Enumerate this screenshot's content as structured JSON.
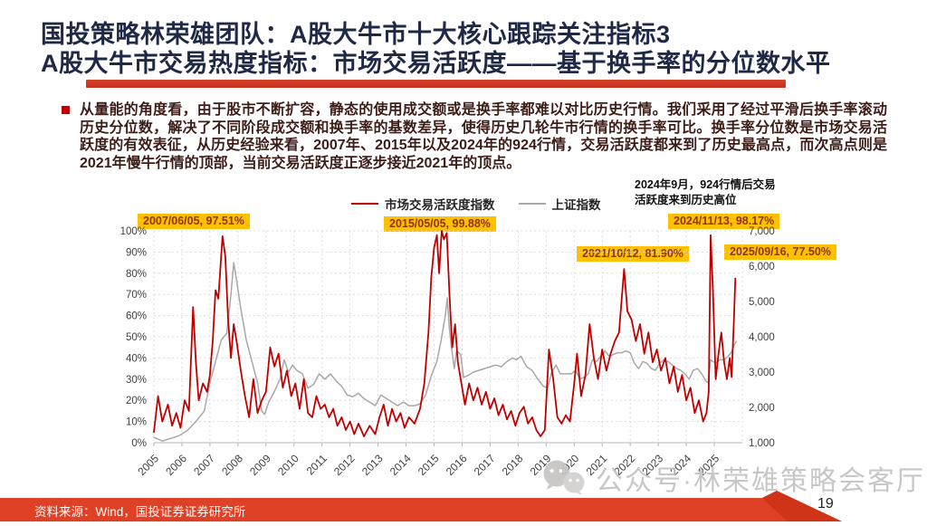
{
  "slide": {
    "title_line1": "国投策略林荣雄团队：A股大牛市十大核心跟踪关注指标3",
    "title_line2": "A股大牛市交易热度指标：市场交易活跃度——基于换手率的分位数水平",
    "body": "从量能的角度看，由于股市不断扩容，静态的使用成交额或是换手率都难以对比历史行情。我们采用了经过平滑后换手率滚动历史分位数，解决了不同阶段成交额和换手率的基数差异，使得历史几轮牛市行情的换手率可比。换手率分位数是市场交易活跃度的有效表征，从历史经验来看，2007年、2015年以及2024年的924行情，交易活跃度都来到了历史最高点，而次高点则是2021年慢牛行情的顶部，当前交易活跃度正逐步接近2021年的顶点。",
    "footer_source": "资料来源：Wind，国投证券证券研究所",
    "page_number": "19",
    "watermark": "公众号·林荣雄策略会客厅"
  },
  "chart_data": {
    "type": "line",
    "legend": [
      "市场交易活跃度指数",
      "上证指数"
    ],
    "legend_position": "top",
    "grid": true,
    "note": "2024年9月，924行情后交易\n活跃度来到历史高位",
    "x_ticks": [
      "2005",
      "2006",
      "2007",
      "2008",
      "2009",
      "2010",
      "2011",
      "2012",
      "2013",
      "2014",
      "2015",
      "2016",
      "2017",
      "2018",
      "2019",
      "2020",
      "2021",
      "2022",
      "2023",
      "2024",
      "2025"
    ],
    "xlim": [
      2005,
      2026
    ],
    "y_left_ticks": [
      "0%",
      "10%",
      "20%",
      "30%",
      "40%",
      "50%",
      "60%",
      "70%",
      "80%",
      "90%",
      "100%"
    ],
    "ylim_left": [
      0,
      100
    ],
    "y_right_ticks": [
      "1,000",
      "2,000",
      "3,000",
      "4,000",
      "5,000",
      "6,000",
      "7,000"
    ],
    "ylim_right": [
      1000,
      7000
    ],
    "annotations": [
      {
        "id": "peak-2007",
        "label": "2007/06/05, 97.51%"
      },
      {
        "id": "peak-2015",
        "label": "2015/05/05, 99.88%"
      },
      {
        "id": "peak-2021",
        "label": "2021/10/12, 81.90%"
      },
      {
        "id": "peak-2024",
        "label": "2024/11/13, 98.17%"
      },
      {
        "id": "latest-2025",
        "label": "2025/09/16, 77.50%"
      }
    ],
    "series": [
      {
        "name": "市场交易活跃度指数",
        "color": "#c00000",
        "axis": "left",
        "points": [
          [
            2005.0,
            5
          ],
          [
            2005.15,
            22
          ],
          [
            2005.3,
            10
          ],
          [
            2005.5,
            18
          ],
          [
            2005.65,
            8
          ],
          [
            2005.8,
            14
          ],
          [
            2005.95,
            7
          ],
          [
            2006.1,
            20
          ],
          [
            2006.25,
            15
          ],
          [
            2006.4,
            64
          ],
          [
            2006.5,
            38
          ],
          [
            2006.6,
            20
          ],
          [
            2006.75,
            28
          ],
          [
            2006.9,
            24
          ],
          [
            2007.0,
            32
          ],
          [
            2007.1,
            48
          ],
          [
            2007.2,
            72
          ],
          [
            2007.3,
            68
          ],
          [
            2007.45,
            97.5
          ],
          [
            2007.55,
            88
          ],
          [
            2007.65,
            58
          ],
          [
            2007.75,
            40
          ],
          [
            2007.85,
            56
          ],
          [
            2007.95,
            48
          ],
          [
            2008.1,
            34
          ],
          [
            2008.25,
            22
          ],
          [
            2008.4,
            12
          ],
          [
            2008.55,
            30
          ],
          [
            2008.7,
            14
          ],
          [
            2008.85,
            20
          ],
          [
            2009.0,
            24
          ],
          [
            2009.15,
            45
          ],
          [
            2009.3,
            36
          ],
          [
            2009.45,
            42
          ],
          [
            2009.6,
            26
          ],
          [
            2009.75,
            34
          ],
          [
            2009.9,
            22
          ],
          [
            2010.05,
            28
          ],
          [
            2010.2,
            16
          ],
          [
            2010.35,
            30
          ],
          [
            2010.5,
            14
          ],
          [
            2010.65,
            12
          ],
          [
            2010.8,
            22
          ],
          [
            2010.95,
            16
          ],
          [
            2011.1,
            18
          ],
          [
            2011.25,
            12
          ],
          [
            2011.4,
            16
          ],
          [
            2011.55,
            8
          ],
          [
            2011.7,
            12
          ],
          [
            2011.85,
            6
          ],
          [
            2012.0,
            10
          ],
          [
            2012.15,
            4
          ],
          [
            2012.3,
            9
          ],
          [
            2012.5,
            3
          ],
          [
            2012.7,
            8
          ],
          [
            2012.9,
            4
          ],
          [
            2013.05,
            12
          ],
          [
            2013.2,
            18
          ],
          [
            2013.35,
            8
          ],
          [
            2013.5,
            16
          ],
          [
            2013.65,
            10
          ],
          [
            2013.8,
            14
          ],
          [
            2013.95,
            7
          ],
          [
            2014.1,
            12
          ],
          [
            2014.3,
            9
          ],
          [
            2014.5,
            16
          ],
          [
            2014.65,
            28
          ],
          [
            2014.8,
            52
          ],
          [
            2014.9,
            78
          ],
          [
            2015.0,
            92
          ],
          [
            2015.1,
            98
          ],
          [
            2015.18,
            80
          ],
          [
            2015.27,
            100
          ],
          [
            2015.35,
            96
          ],
          [
            2015.45,
            99
          ],
          [
            2015.55,
            70
          ],
          [
            2015.65,
            45
          ],
          [
            2015.75,
            56
          ],
          [
            2015.85,
            38
          ],
          [
            2015.95,
            30
          ],
          [
            2016.1,
            18
          ],
          [
            2016.25,
            28
          ],
          [
            2016.4,
            20
          ],
          [
            2016.55,
            26
          ],
          [
            2016.7,
            18
          ],
          [
            2016.85,
            24
          ],
          [
            2017.0,
            16
          ],
          [
            2017.15,
            21
          ],
          [
            2017.3,
            13
          ],
          [
            2017.45,
            18
          ],
          [
            2017.6,
            11
          ],
          [
            2017.75,
            15
          ],
          [
            2017.9,
            8
          ],
          [
            2018.05,
            14
          ],
          [
            2018.2,
            17
          ],
          [
            2018.35,
            9
          ],
          [
            2018.5,
            12
          ],
          [
            2018.65,
            6
          ],
          [
            2018.8,
            3
          ],
          [
            2018.95,
            6
          ],
          [
            2019.1,
            44
          ],
          [
            2019.25,
            30
          ],
          [
            2019.4,
            12
          ],
          [
            2019.55,
            9
          ],
          [
            2019.7,
            13
          ],
          [
            2019.85,
            10
          ],
          [
            2020.0,
            28
          ],
          [
            2020.1,
            42
          ],
          [
            2020.25,
            22
          ],
          [
            2020.4,
            32
          ],
          [
            2020.55,
            56
          ],
          [
            2020.7,
            40
          ],
          [
            2020.85,
            30
          ],
          [
            2021.0,
            44
          ],
          [
            2021.15,
            34
          ],
          [
            2021.3,
            42
          ],
          [
            2021.45,
            48
          ],
          [
            2021.6,
            52
          ],
          [
            2021.78,
            82
          ],
          [
            2021.9,
            62
          ],
          [
            2022.05,
            58
          ],
          [
            2022.2,
            48
          ],
          [
            2022.35,
            56
          ],
          [
            2022.5,
            42
          ],
          [
            2022.65,
            52
          ],
          [
            2022.8,
            38
          ],
          [
            2022.95,
            44
          ],
          [
            2023.1,
            34
          ],
          [
            2023.25,
            40
          ],
          [
            2023.4,
            28
          ],
          [
            2023.55,
            36
          ],
          [
            2023.7,
            24
          ],
          [
            2023.85,
            32
          ],
          [
            2024.0,
            20
          ],
          [
            2024.15,
            26
          ],
          [
            2024.3,
            14
          ],
          [
            2024.45,
            20
          ],
          [
            2024.6,
            10
          ],
          [
            2024.72,
            14
          ],
          [
            2024.8,
            24
          ],
          [
            2024.87,
            98
          ],
          [
            2024.95,
            72
          ],
          [
            2025.05,
            30
          ],
          [
            2025.15,
            42
          ],
          [
            2025.25,
            52
          ],
          [
            2025.35,
            38
          ],
          [
            2025.45,
            30
          ],
          [
            2025.55,
            40
          ],
          [
            2025.62,
            31
          ],
          [
            2025.7,
            58
          ],
          [
            2025.75,
            77.5
          ]
        ]
      },
      {
        "name": "上证指数",
        "color": "#a8a8a8",
        "axis": "right",
        "points": [
          [
            2005.0,
            1150
          ],
          [
            2005.3,
            1050
          ],
          [
            2005.6,
            1120
          ],
          [
            2005.9,
            1200
          ],
          [
            2006.2,
            1350
          ],
          [
            2006.5,
            1600
          ],
          [
            2006.8,
            1900
          ],
          [
            2007.0,
            2700
          ],
          [
            2007.2,
            3300
          ],
          [
            2007.4,
            3900
          ],
          [
            2007.6,
            4100
          ],
          [
            2007.75,
            5200
          ],
          [
            2007.85,
            6100
          ],
          [
            2007.95,
            5600
          ],
          [
            2008.1,
            4800
          ],
          [
            2008.3,
            3900
          ],
          [
            2008.5,
            3300
          ],
          [
            2008.7,
            2700
          ],
          [
            2008.85,
            1900
          ],
          [
            2008.95,
            1800
          ],
          [
            2009.1,
            2150
          ],
          [
            2009.3,
            2450
          ],
          [
            2009.5,
            2800
          ],
          [
            2009.65,
            3350
          ],
          [
            2009.8,
            3000
          ],
          [
            2009.95,
            3200
          ],
          [
            2010.1,
            3050
          ],
          [
            2010.3,
            2950
          ],
          [
            2010.5,
            2550
          ],
          [
            2010.7,
            2650
          ],
          [
            2010.9,
            2950
          ],
          [
            2011.1,
            2800
          ],
          [
            2011.3,
            2950
          ],
          [
            2011.5,
            2750
          ],
          [
            2011.7,
            2600
          ],
          [
            2011.9,
            2350
          ],
          [
            2012.1,
            2300
          ],
          [
            2012.3,
            2400
          ],
          [
            2012.5,
            2250
          ],
          [
            2012.7,
            2150
          ],
          [
            2012.9,
            2050
          ],
          [
            2013.1,
            2350
          ],
          [
            2013.3,
            2250
          ],
          [
            2013.5,
            2150
          ],
          [
            2013.7,
            2050
          ],
          [
            2013.9,
            2150
          ],
          [
            2014.1,
            2050
          ],
          [
            2014.3,
            2050
          ],
          [
            2014.5,
            2100
          ],
          [
            2014.7,
            2350
          ],
          [
            2014.9,
            2900
          ],
          [
            2015.1,
            3300
          ],
          [
            2015.25,
            3900
          ],
          [
            2015.4,
            4600
          ],
          [
            2015.47,
            5100
          ],
          [
            2015.55,
            4200
          ],
          [
            2015.62,
            3700
          ],
          [
            2015.72,
            3100
          ],
          [
            2015.8,
            3600
          ],
          [
            2015.95,
            3500
          ],
          [
            2016.05,
            2850
          ],
          [
            2016.2,
            2900
          ],
          [
            2016.4,
            3000
          ],
          [
            2016.6,
            3050
          ],
          [
            2016.8,
            3100
          ],
          [
            2017.0,
            3150
          ],
          [
            2017.2,
            3200
          ],
          [
            2017.4,
            3150
          ],
          [
            2017.6,
            3300
          ],
          [
            2017.8,
            3400
          ],
          [
            2017.95,
            3350
          ],
          [
            2018.1,
            3450
          ],
          [
            2018.3,
            3150
          ],
          [
            2018.5,
            3050
          ],
          [
            2018.7,
            2800
          ],
          [
            2018.9,
            2600
          ],
          [
            2019.05,
            2550
          ],
          [
            2019.2,
            3000
          ],
          [
            2019.35,
            3200
          ],
          [
            2019.5,
            2950
          ],
          [
            2019.7,
            2950
          ],
          [
            2019.9,
            2950
          ],
          [
            2020.05,
            3050
          ],
          [
            2020.2,
            2800
          ],
          [
            2020.35,
            2850
          ],
          [
            2020.5,
            2950
          ],
          [
            2020.65,
            3350
          ],
          [
            2020.8,
            3300
          ],
          [
            2020.95,
            3450
          ],
          [
            2021.1,
            3600
          ],
          [
            2021.25,
            3450
          ],
          [
            2021.4,
            3500
          ],
          [
            2021.55,
            3550
          ],
          [
            2021.7,
            3550
          ],
          [
            2021.85,
            3600
          ],
          [
            2022.0,
            3550
          ],
          [
            2022.15,
            3250
          ],
          [
            2022.3,
            3100
          ],
          [
            2022.45,
            3300
          ],
          [
            2022.6,
            3250
          ],
          [
            2022.75,
            3100
          ],
          [
            2022.9,
            3050
          ],
          [
            2023.05,
            3250
          ],
          [
            2023.2,
            3350
          ],
          [
            2023.35,
            3300
          ],
          [
            2023.5,
            3200
          ],
          [
            2023.65,
            3100
          ],
          [
            2023.8,
            3050
          ],
          [
            2023.95,
            2950
          ],
          [
            2024.1,
            2800
          ],
          [
            2024.25,
            3050
          ],
          [
            2024.4,
            3100
          ],
          [
            2024.55,
            2950
          ],
          [
            2024.7,
            2750
          ],
          [
            2024.78,
            2700
          ],
          [
            2024.87,
            3350
          ],
          [
            2024.95,
            3300
          ],
          [
            2025.05,
            3250
          ],
          [
            2025.2,
            3350
          ],
          [
            2025.35,
            3350
          ],
          [
            2025.5,
            3450
          ],
          [
            2025.6,
            3550
          ],
          [
            2025.7,
            3750
          ],
          [
            2025.78,
            3870
          ]
        ]
      }
    ]
  }
}
